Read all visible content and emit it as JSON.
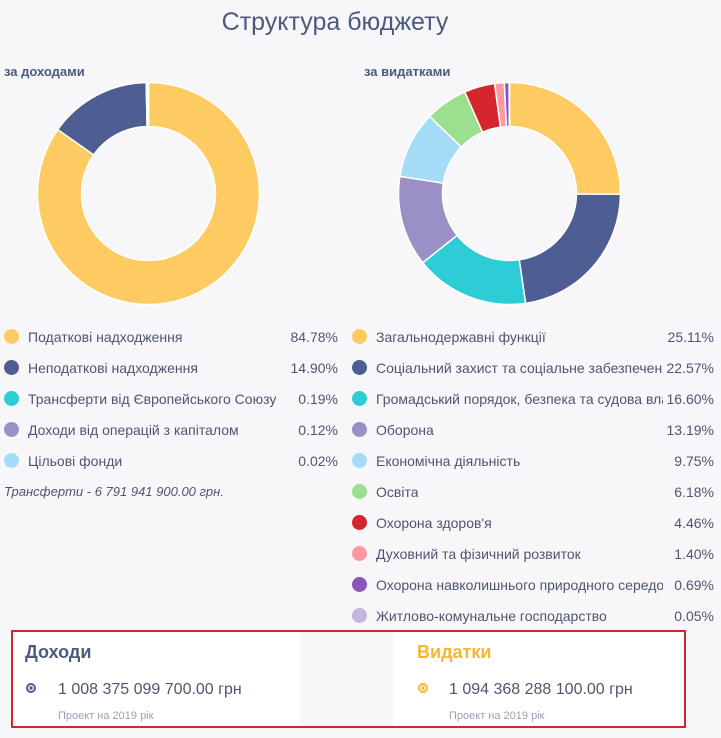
{
  "title": "Структура бюджету",
  "income": {
    "label": "за доходами",
    "note": "Трансферти - 6 791 941 900.00 грн."
  },
  "expense": {
    "label": "за видатками"
  },
  "chart_data": [
    {
      "type": "pie",
      "title": "за доходами",
      "categories": [
        "Податкові надходження",
        "Неподаткові надходження",
        "Трансферти від Європейського Союзу",
        "Доходи від операцій з капіталом",
        "Цільові фонди"
      ],
      "values": [
        84.78,
        14.9,
        0.19,
        0.12,
        0.02
      ],
      "value_labels": [
        "84.78%",
        "14.90%",
        "0.19%",
        "0.12%",
        "0.02%"
      ],
      "colors": [
        "#fecb62",
        "#4e5e92",
        "#2ecdd6",
        "#9b90c6",
        "#a4dcf8"
      ],
      "legend": "bottom"
    },
    {
      "type": "pie",
      "title": "за видатками",
      "categories": [
        "Загальнодержавні функції",
        "Соціальний захист та соціальне забезпечення",
        "Громадський порядок, безпека та судова влада",
        "Оборона",
        "Економічна діяльність",
        "Освіта",
        "Охорона здоров'я",
        "Духовний та фізичний розвиток",
        "Охорона навколишнього природного середовища",
        "Житлово-комунальне господарство"
      ],
      "values": [
        25.11,
        22.57,
        16.6,
        13.19,
        9.75,
        6.18,
        4.46,
        1.4,
        0.69,
        0.05
      ],
      "value_labels": [
        "25.11%",
        "22.57%",
        "16.60%",
        "13.19%",
        "9.75%",
        "6.18%",
        "4.46%",
        "1.40%",
        "0.69%",
        "0.05%"
      ],
      "colors": [
        "#fecb62",
        "#4e5e92",
        "#2ecdd6",
        "#9b90c6",
        "#a4dcf8",
        "#9be08f",
        "#d5262e",
        "#fd9a9f",
        "#8c55bb",
        "#c4b5dd"
      ],
      "legend": "bottom"
    }
  ],
  "summary": {
    "income": {
      "title": "Доходи",
      "amount": "1 008 375 099 700.00 грн",
      "caption": "Проект на 2019 рік",
      "accent": "#4e5e92"
    },
    "expense": {
      "title": "Видатки",
      "amount": "1 094 368 288 100.00 грн",
      "caption": "Проект на 2019 рік",
      "accent": "#f5b731"
    }
  }
}
